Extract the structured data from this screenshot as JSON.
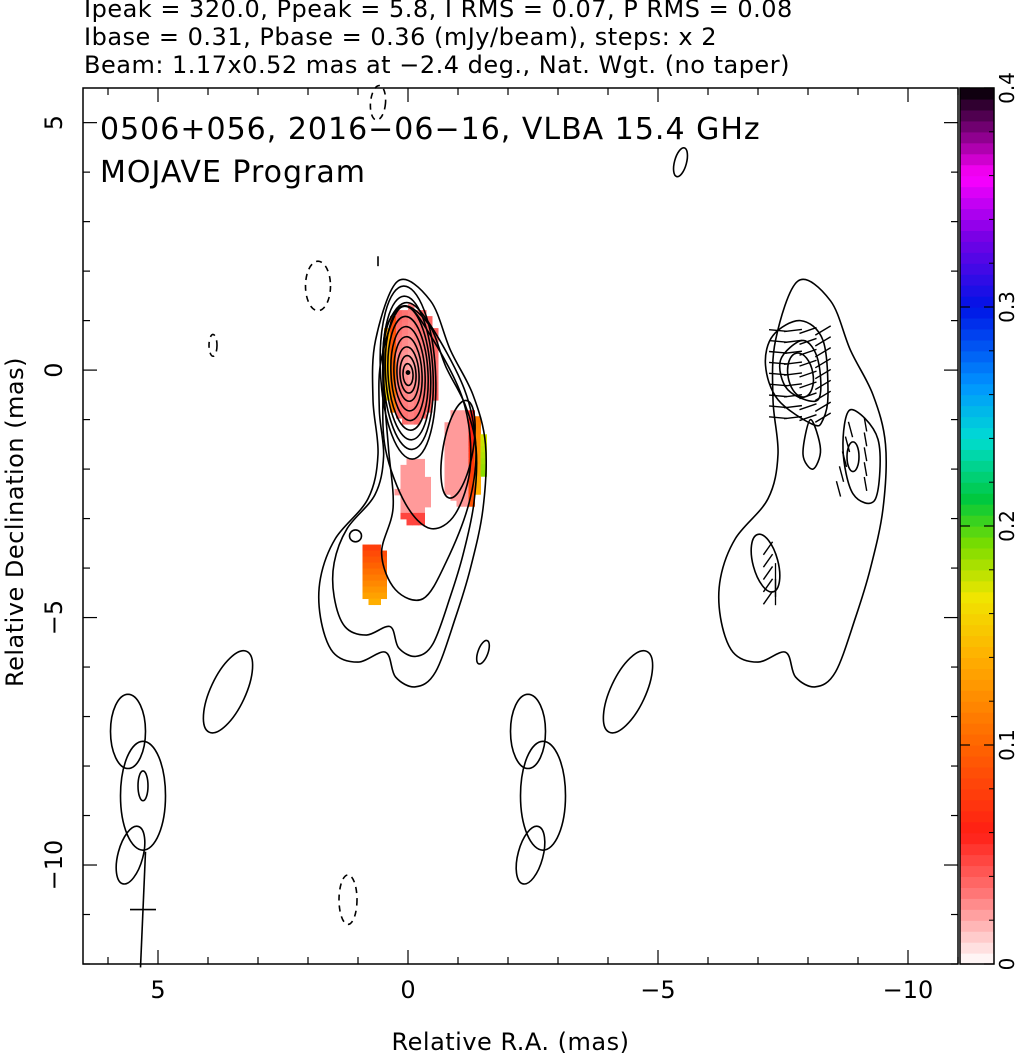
{
  "header": {
    "line1": "Ipeak = 320.0, Ppeak = 5.8, I RMS = 0.07, P RMS = 0.08",
    "line2": "Ibase = 0.31, Pbase = 0.36 (mJy/beam), steps: x 2",
    "line3": "Beam: 1.17x0.52 mas at −2.4 deg., Nat. Wgt. (no taper)"
  },
  "chart_data": {
    "type": "heatmap",
    "title": "0506+056, 2016−06−16, VLBA 15.4 GHz",
    "subtitle": "MOJAVE Program",
    "xlabel": "Relative R.A. (mas)",
    "ylabel": "Relative Declination (mas)",
    "xlim": [
      6.5,
      -11.0
    ],
    "ylim": [
      -12.0,
      5.7
    ],
    "x_ticks": [
      5,
      0,
      -5,
      -10
    ],
    "x_tick_labels": [
      "5",
      "0",
      "−5",
      "−10"
    ],
    "y_ticks": [
      5,
      0,
      -5,
      -10
    ],
    "y_tick_labels": [
      "5",
      "0",
      "−5",
      "−10"
    ],
    "colorbar": {
      "range": [
        0,
        0.4
      ],
      "ticks": [
        0,
        0.1,
        0.2,
        0.3,
        0.4
      ],
      "tick_labels": [
        "0",
        "0.1",
        "0.2",
        "0.3",
        "0.4"
      ],
      "colormap": "white-red-orange-yellow-green-cyan-blue-magenta-black"
    },
    "beam": {
      "major_mas": 1.17,
      "minor_mas": 0.52,
      "pa_deg": -2.4,
      "center": [
        5.3,
        -10.9
      ]
    },
    "ipeak_mJy": 320.0,
    "ppeak_mJy": 5.8,
    "i_rms": 0.07,
    "p_rms": 0.08,
    "i_base": 0.31,
    "p_base": 0.36,
    "contour_step": 2
  }
}
